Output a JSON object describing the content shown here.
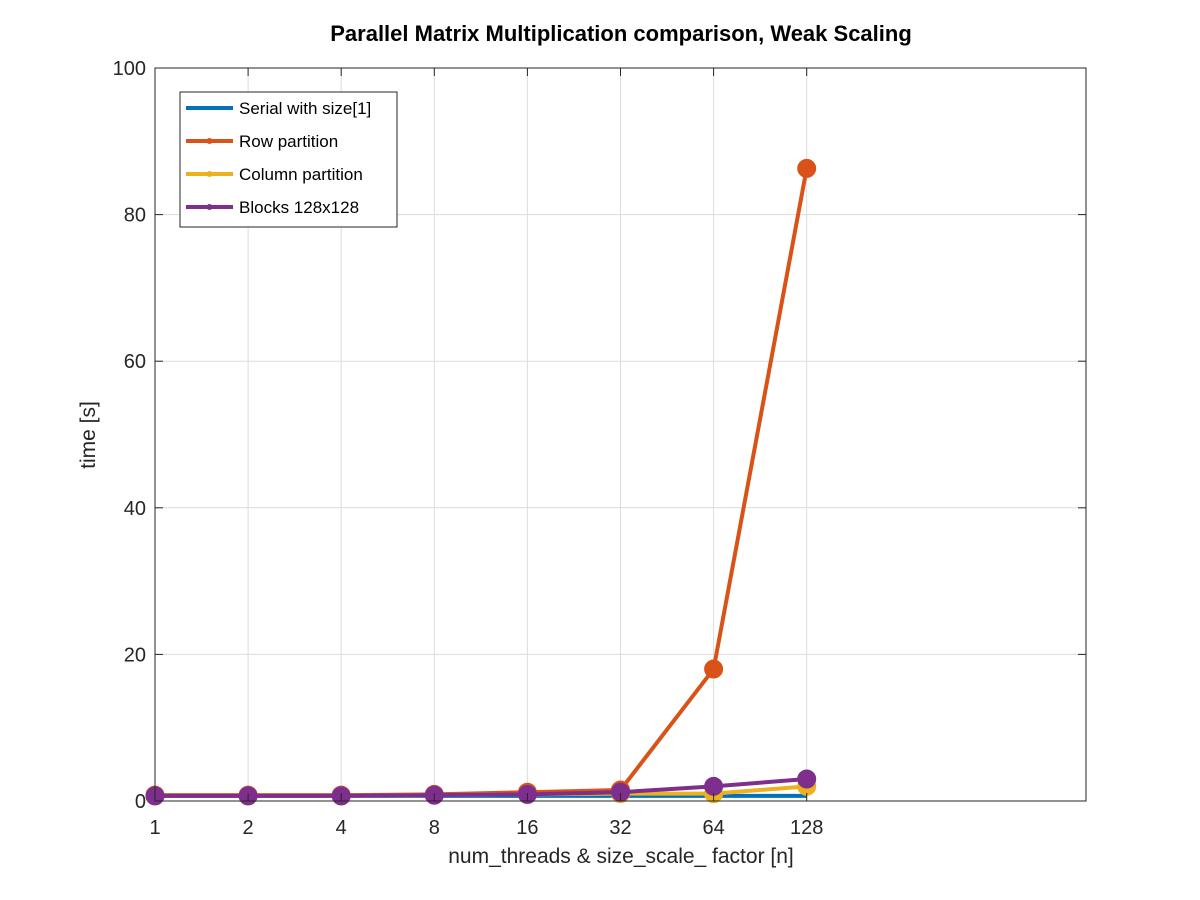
{
  "chart_data": {
    "type": "line",
    "title": "Parallel Matrix Multiplication comparison, Weak Scaling",
    "xlabel": "num_threads & size_scale_ factor [n]",
    "ylabel": "time [s]",
    "categories": [
      "1",
      "2",
      "4",
      "8",
      "16",
      "32",
      "64",
      "128"
    ],
    "ylim": [
      0,
      100
    ],
    "yticks": [
      "0",
      "20",
      "40",
      "60",
      "80",
      "100"
    ],
    "grid": true,
    "legend_position": "top-left",
    "series": [
      {
        "name": "Serial with size[1]",
        "color": "#0072BD",
        "marker": false,
        "values": [
          0.7,
          0.7,
          0.7,
          0.7,
          0.7,
          0.7,
          0.7,
          0.7
        ]
      },
      {
        "name": "Row partition",
        "color": "#D95319",
        "marker": true,
        "values": [
          0.8,
          0.8,
          0.8,
          0.9,
          1.2,
          1.5,
          18.0,
          86.3
        ]
      },
      {
        "name": "Column partition",
        "color": "#EDB120",
        "marker": true,
        "values": [
          0.7,
          0.7,
          0.7,
          0.8,
          0.9,
          1.0,
          1.0,
          2.0
        ]
      },
      {
        "name": "Blocks 128x128",
        "color": "#7E2F8E",
        "marker": true,
        "values": [
          0.7,
          0.7,
          0.7,
          0.8,
          0.9,
          1.2,
          2.0,
          3.0
        ]
      }
    ]
  }
}
